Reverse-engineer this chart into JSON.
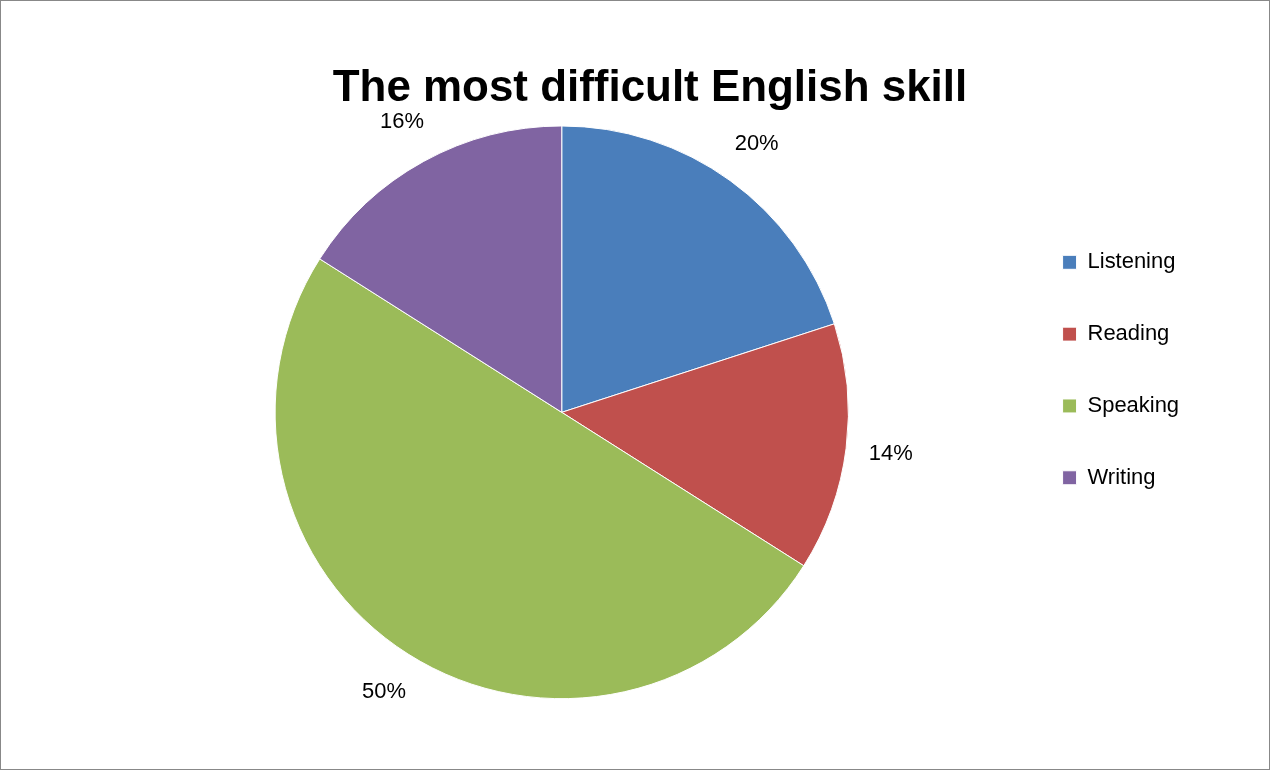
{
  "chart_data": {
    "type": "pie",
    "title": "The most difficult English skill",
    "categories": [
      "Listening",
      "Reading",
      "Speaking",
      "Writing"
    ],
    "values": [
      20,
      14,
      50,
      16
    ],
    "colors": [
      "#4a7ebb",
      "#c0504d",
      "#9bbb59",
      "#8064a2"
    ],
    "value_labels": [
      "20%",
      "14%",
      "50%",
      "16%"
    ],
    "legend": "right"
  }
}
